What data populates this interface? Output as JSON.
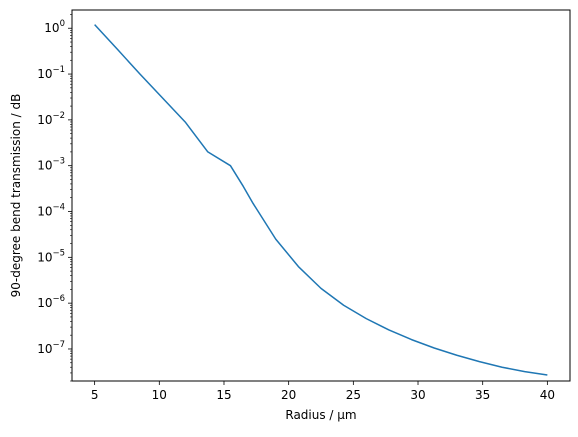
{
  "chart_data": {
    "type": "line",
    "title": "",
    "xlabel": "Radius / μm",
    "ylabel": "90-degree bend transmission / dB",
    "xlim": [
      3.25,
      41.75
    ],
    "ylim": [
      2e-08,
      2.5
    ],
    "yscale": "log",
    "grid": false,
    "x_ticks": [
      5,
      10,
      15,
      20,
      25,
      30,
      35,
      40
    ],
    "x_tick_labels": [
      "5",
      "10",
      "15",
      "20",
      "25",
      "30",
      "35",
      "40"
    ],
    "y_ticks": [
      1.0,
      0.1,
      0.01,
      0.001,
      0.0001,
      1e-05,
      1e-06,
      1e-07
    ],
    "y_tick_labels": [
      {
        "base": "10",
        "exp": "0"
      },
      {
        "base": "10",
        "exp": "−1"
      },
      {
        "base": "10",
        "exp": "−2"
      },
      {
        "base": "10",
        "exp": "−3"
      },
      {
        "base": "10",
        "exp": "−4"
      },
      {
        "base": "10",
        "exp": "−5"
      },
      {
        "base": "10",
        "exp": "−6"
      },
      {
        "base": "10",
        "exp": "−7"
      }
    ],
    "series": [
      {
        "color": "#1f77b4",
        "x": [
          5.0,
          6.75,
          8.5,
          10.25,
          12.0,
          13.75,
          15.5,
          16.5,
          17.25,
          19.0,
          20.75,
          22.5,
          24.25,
          26.0,
          27.75,
          29.5,
          31.25,
          33.0,
          34.75,
          36.5,
          38.25,
          40.0
        ],
        "y": [
          1.2,
          0.35,
          0.1,
          0.03,
          0.009,
          0.002,
          0.001,
          0.00035,
          0.00015,
          2.5e-05,
          6.3e-06,
          2.1e-06,
          9e-07,
          4.6e-07,
          2.6e-07,
          1.6e-07,
          1.05e-07,
          7.3e-08,
          5.3e-08,
          4e-08,
          3.2e-08,
          2.7e-08
        ]
      }
    ]
  }
}
